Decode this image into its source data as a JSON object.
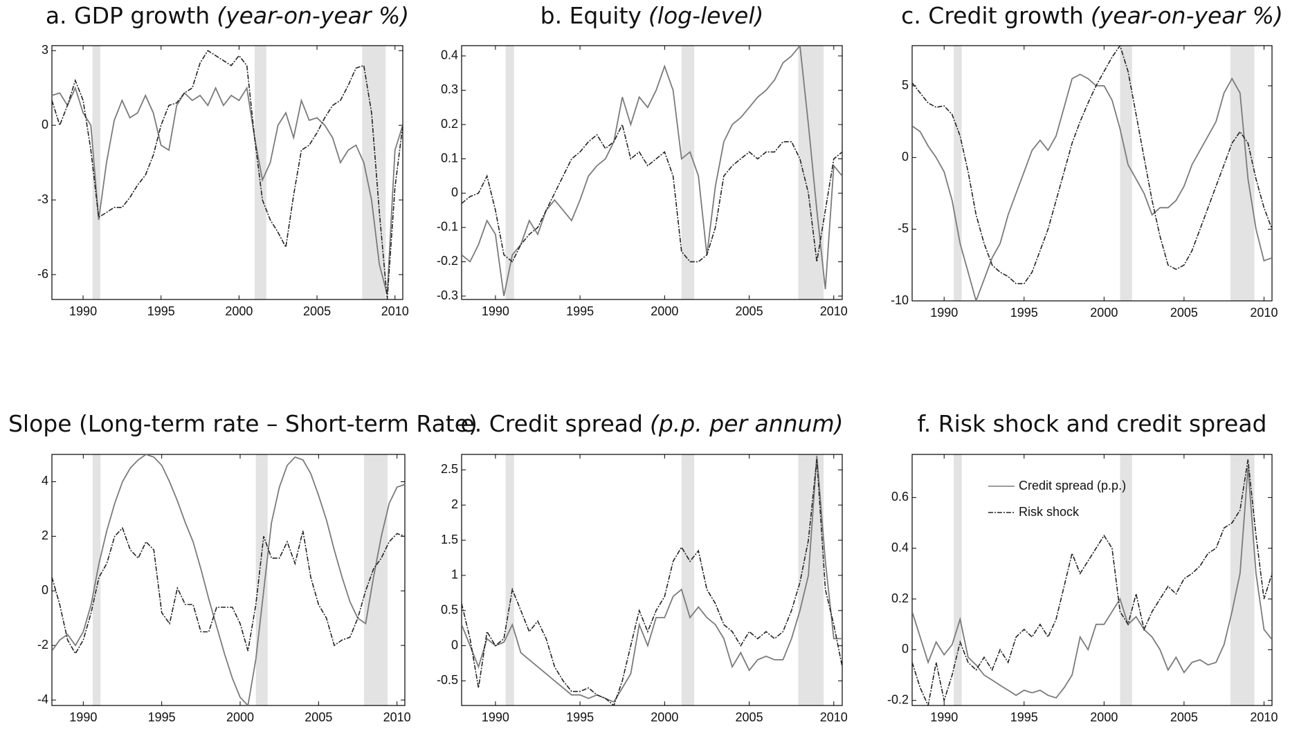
{
  "chart_data": [
    {
      "type": "line",
      "title": "a. GDP growth",
      "subtitle": "(year-on-year %)",
      "x": [
        1988,
        1988.5,
        1989,
        1989.5,
        1990,
        1990.5,
        1991,
        1991.5,
        1992,
        1992.5,
        1993,
        1993.5,
        1994,
        1994.5,
        1995,
        1995.5,
        1996,
        1996.5,
        1997,
        1997.5,
        1998,
        1998.5,
        1999,
        1999.5,
        2000,
        2000.5,
        2001,
        2001.5,
        2002,
        2002.5,
        2003,
        2003.5,
        2004,
        2004.5,
        2005,
        2005.5,
        2006,
        2006.5,
        2007,
        2007.5,
        2008,
        2008.5,
        2009,
        2009.5,
        2010,
        2010.5
      ],
      "xlim": [
        1988,
        2010.5
      ],
      "xticks": [
        1990,
        1995,
        2000,
        2005,
        2010
      ],
      "ylim": [
        -7,
        3.2
      ],
      "yticks": [
        3,
        0,
        -3,
        -6
      ],
      "shaded_periods": [
        [
          1990.6,
          1991.1
        ],
        [
          2001,
          2001.75
        ],
        [
          2007.9,
          2009.4
        ]
      ],
      "shade_color": "#e3e3e3",
      "series": [
        {
          "color": "#7a7a7a",
          "style": "solid",
          "values": [
            1.2,
            1.3,
            0.8,
            1.5,
            0.5,
            0,
            -3.8,
            -1.5,
            0.2,
            1.0,
            0.3,
            0.5,
            1.2,
            0.5,
            -0.8,
            -1.0,
            0.8,
            1.3,
            1.0,
            1.2,
            0.8,
            1.5,
            0.8,
            1.2,
            1.0,
            1.5,
            -0.5,
            -2.2,
            -1.5,
            0,
            0.5,
            -0.5,
            1.0,
            0.2,
            0.3,
            0,
            -0.5,
            -1.5,
            -1.0,
            -0.8,
            -1.5,
            -3,
            -5.6,
            -6.8,
            -1,
            0
          ]
        },
        {
          "color": "#222222",
          "style": "dashed",
          "values": [
            1.0,
            0,
            0.8,
            1.8,
            1.0,
            -1,
            -3.7,
            -3.5,
            -3.3,
            -3.3,
            -2.9,
            -2.4,
            -2.0,
            -1.2,
            0,
            0.8,
            0.9,
            1.3,
            1.5,
            2.5,
            3.0,
            2.8,
            2.6,
            2.4,
            2.8,
            2.4,
            -0.5,
            -3.0,
            -3.8,
            -4.3,
            -4.9,
            -2.8,
            -1.0,
            -0.8,
            -0.3,
            0.3,
            0.8,
            1.0,
            1.6,
            2.3,
            2.4,
            0.5,
            -3.5,
            -7.0,
            -2.5,
            0
          ]
        }
      ]
    },
    {
      "type": "line",
      "title": "b. Equity",
      "subtitle": "(log-level)",
      "x": [
        1988,
        1988.5,
        1989,
        1989.5,
        1990,
        1990.5,
        1991,
        1991.5,
        1992,
        1992.5,
        1993,
        1993.5,
        1994,
        1994.5,
        1995,
        1995.5,
        1996,
        1996.5,
        1997,
        1997.5,
        1998,
        1998.5,
        1999,
        1999.5,
        2000,
        2000.5,
        2001,
        2001.5,
        2002,
        2002.5,
        2003,
        2003.5,
        2004,
        2004.5,
        2005,
        2005.5,
        2006,
        2006.5,
        2007,
        2007.5,
        2008,
        2008.5,
        2009,
        2009.5,
        2010,
        2010.5
      ],
      "xlim": [
        1988,
        2010.5
      ],
      "xticks": [
        1990,
        1995,
        2000,
        2005,
        2010
      ],
      "ylim": [
        -0.31,
        0.43
      ],
      "yticks": [
        -0.3,
        -0.2,
        -0.1,
        0,
        0.1,
        0.2,
        0.3,
        0.4
      ],
      "shaded_periods": [
        [
          1990.6,
          1991.1
        ],
        [
          2001,
          2001.75
        ],
        [
          2007.9,
          2009.4
        ]
      ],
      "shade_color": "#e3e3e3",
      "series": [
        {
          "color": "#7a7a7a",
          "style": "solid",
          "values": [
            -0.18,
            -0.2,
            -0.15,
            -0.08,
            -0.12,
            -0.3,
            -0.18,
            -0.15,
            -0.08,
            -0.12,
            -0.05,
            -0.02,
            -0.05,
            -0.08,
            -0.02,
            0.05,
            0.08,
            0.1,
            0.15,
            0.28,
            0.2,
            0.28,
            0.25,
            0.3,
            0.37,
            0.3,
            0.1,
            0.12,
            0.05,
            -0.18,
            0.02,
            0.15,
            0.2,
            0.22,
            0.25,
            0.28,
            0.3,
            0.33,
            0.38,
            0.4,
            0.43,
            0.2,
            -0.05,
            -0.28,
            0.08,
            0.05
          ]
        },
        {
          "color": "#222222",
          "style": "dashed",
          "values": [
            -0.03,
            -0.01,
            0.0,
            0.05,
            -0.05,
            -0.18,
            -0.2,
            -0.15,
            -0.12,
            -0.1,
            -0.05,
            0.0,
            0.05,
            0.1,
            0.12,
            0.15,
            0.17,
            0.13,
            0.15,
            0.2,
            0.1,
            0.12,
            0.08,
            0.1,
            0.12,
            0.05,
            -0.17,
            -0.2,
            -0.2,
            -0.18,
            -0.1,
            0.05,
            0.08,
            0.1,
            0.12,
            0.1,
            0.12,
            0.12,
            0.15,
            0.15,
            0.1,
            0.0,
            -0.2,
            -0.05,
            0.1,
            0.12
          ]
        }
      ]
    },
    {
      "type": "line",
      "title": "c. Credit growth",
      "subtitle": "(year-on-year %)",
      "x": [
        1988,
        1988.5,
        1989,
        1989.5,
        1990,
        1990.5,
        1991,
        1991.5,
        1992,
        1992.5,
        1993,
        1993.5,
        1994,
        1994.5,
        1995,
        1995.5,
        1996,
        1996.5,
        1997,
        1997.5,
        1998,
        1998.5,
        1999,
        1999.5,
        2000,
        2000.5,
        2001,
        2001.5,
        2002,
        2002.5,
        2003,
        2003.5,
        2004,
        2004.5,
        2005,
        2005.5,
        2006,
        2006.5,
        2007,
        2007.5,
        2008,
        2008.5,
        2009,
        2009.5,
        2010,
        2010.5
      ],
      "xlim": [
        1988,
        2010.5
      ],
      "xticks": [
        1990,
        1995,
        2000,
        2005,
        2010
      ],
      "ylim": [
        -10,
        7.8
      ],
      "yticks": [
        5,
        0,
        -5,
        -10
      ],
      "shaded_periods": [
        [
          1990.6,
          1991.1
        ],
        [
          2001,
          2001.75
        ],
        [
          2007.9,
          2009.4
        ]
      ],
      "shade_color": "#e3e3e3",
      "series": [
        {
          "color": "#7a7a7a",
          "style": "solid",
          "values": [
            2.2,
            1.8,
            0.8,
            0,
            -1,
            -3,
            -6,
            -8,
            -10,
            -8.5,
            -7,
            -6,
            -4,
            -2.5,
            -1,
            0.5,
            1.2,
            0.5,
            1.5,
            3.5,
            5.5,
            5.8,
            5.5,
            5,
            5,
            4,
            2,
            -0.5,
            -1.5,
            -2.5,
            -4,
            -3.5,
            -3.5,
            -3,
            -2,
            -0.5,
            0.5,
            1.5,
            2.5,
            4.5,
            5.5,
            4.5,
            -1.5,
            -5,
            -7.2,
            -7
          ]
        },
        {
          "color": "#222222",
          "style": "dashed",
          "values": [
            5.2,
            4.5,
            3.8,
            3.5,
            3.6,
            3.0,
            1.5,
            -1,
            -4,
            -6,
            -7.5,
            -8,
            -8.3,
            -8.8,
            -8.8,
            -8,
            -6.5,
            -5,
            -3,
            -1,
            1,
            2.5,
            3.8,
            5,
            6,
            7,
            7.8,
            6,
            3,
            0,
            -3,
            -5.5,
            -7.5,
            -7.8,
            -7.5,
            -6.5,
            -5,
            -3.5,
            -2,
            -0.5,
            1,
            1.8,
            1,
            -1.5,
            -3.5,
            -5
          ]
        }
      ]
    },
    {
      "type": "line",
      "title": "d. Slope (Long-term rate – Short-term Rate)",
      "x": [
        1988,
        1988.5,
        1989,
        1989.5,
        1990,
        1990.5,
        1991,
        1991.5,
        1992,
        1992.5,
        1993,
        1993.5,
        1994,
        1994.5,
        1995,
        1995.5,
        1996,
        1996.5,
        1997,
        1997.5,
        1998,
        1998.5,
        1999,
        1999.5,
        2000,
        2000.5,
        2001,
        2001.5,
        2002,
        2002.5,
        2003,
        2003.5,
        2004,
        2004.5,
        2005,
        2005.5,
        2006,
        2006.5,
        2007,
        2007.5,
        2008,
        2008.5,
        2009,
        2009.5,
        2010,
        2010.5
      ],
      "xlim": [
        1988,
        2010.5
      ],
      "xticks": [
        1990,
        1995,
        2000,
        2005,
        2010
      ],
      "ylim": [
        -4.2,
        5
      ],
      "yticks": [
        4,
        2,
        0,
        -2,
        -4
      ],
      "shaded_periods": [
        [
          1990.6,
          1991.1
        ],
        [
          2001,
          2001.75
        ],
        [
          2007.9,
          2009.4
        ]
      ],
      "shade_color": "#e3e3e3",
      "series": [
        {
          "color": "#7a7a7a",
          "style": "solid",
          "values": [
            -2.2,
            -1.8,
            -1.6,
            -2.0,
            -1.5,
            -0.5,
            1,
            2.2,
            3.2,
            4.0,
            4.5,
            4.8,
            5.0,
            4.9,
            4.6,
            4.0,
            3.3,
            2.5,
            1.8,
            0.8,
            -0.3,
            -1.3,
            -2.3,
            -3.2,
            -3.9,
            -4.2,
            -2.5,
            0,
            2.5,
            3.8,
            4.6,
            4.9,
            4.8,
            4.3,
            3.5,
            2.6,
            1.5,
            0.5,
            -0.4,
            -1.0,
            -1.2,
            0.5,
            2.0,
            3.2,
            3.8,
            3.9
          ]
        },
        {
          "color": "#222222",
          "style": "dashed",
          "values": [
            0.5,
            -0.5,
            -1.8,
            -2.3,
            -1.8,
            -0.8,
            0.5,
            1.0,
            2.0,
            2.3,
            1.5,
            1.2,
            1.8,
            1.5,
            -0.8,
            -1.2,
            0.1,
            -0.5,
            -0.5,
            -1.5,
            -1.5,
            -0.6,
            -0.6,
            -0.6,
            -1.2,
            -2.2,
            -0.5,
            2.0,
            1.2,
            1.2,
            1.8,
            1.0,
            2.2,
            0.5,
            -0.5,
            -1.0,
            -2.0,
            -1.8,
            -1.7,
            -1.0,
            0.0,
            0.8,
            1.2,
            1.8,
            2.1,
            2.0
          ]
        }
      ]
    },
    {
      "type": "line",
      "title": "e. Credit spread",
      "subtitle": "(p.p. per annum)",
      "x": [
        1988,
        1988.5,
        1989,
        1989.5,
        1990,
        1990.5,
        1991,
        1991.5,
        1992,
        1992.5,
        1993,
        1993.5,
        1994,
        1994.5,
        1995,
        1995.5,
        1996,
        1996.5,
        1997,
        1997.5,
        1998,
        1998.5,
        1999,
        1999.5,
        2000,
        2000.5,
        2001,
        2001.5,
        2002,
        2002.5,
        2003,
        2003.5,
        2004,
        2004.5,
        2005,
        2005.5,
        2006,
        2006.5,
        2007,
        2007.5,
        2008,
        2008.5,
        2009,
        2009.5,
        2010,
        2010.5
      ],
      "xlim": [
        1988,
        2010.5
      ],
      "xticks": [
        1990,
        1995,
        2000,
        2005,
        2010
      ],
      "ylim": [
        -0.85,
        2.72
      ],
      "yticks": [
        -0.5,
        0,
        0.5,
        1,
        1.5,
        2,
        2.5
      ],
      "shaded_periods": [
        [
          1990.6,
          1991.1
        ],
        [
          2001,
          2001.75
        ],
        [
          2007.9,
          2009.4
        ]
      ],
      "shade_color": "#e3e3e3",
      "series": [
        {
          "color": "#7a7a7a",
          "style": "solid",
          "values": [
            0.3,
            0,
            -0.3,
            0.1,
            0.0,
            0.05,
            0.3,
            -0.1,
            -0.2,
            -0.3,
            -0.4,
            -0.5,
            -0.6,
            -0.7,
            -0.7,
            -0.75,
            -0.7,
            -0.75,
            -0.8,
            -0.6,
            -0.4,
            0.3,
            0,
            0.4,
            0.4,
            0.7,
            0.8,
            0.4,
            0.55,
            0.4,
            0.3,
            0.1,
            -0.3,
            -0.1,
            -0.35,
            -0.2,
            -0.15,
            -0.2,
            -0.2,
            0.1,
            0.5,
            1.0,
            2.7,
            1.2,
            0.1,
            0.1
          ]
        },
        {
          "color": "#222222",
          "style": "dashed",
          "values": [
            0.6,
            0.1,
            -0.6,
            0.2,
            0.0,
            0.1,
            0.8,
            0.5,
            0.2,
            0.35,
            0.1,
            -0.3,
            -0.5,
            -0.65,
            -0.65,
            -0.6,
            -0.7,
            -0.75,
            -0.85,
            -0.5,
            0,
            0.5,
            0.2,
            0.5,
            0.7,
            1.2,
            1.4,
            1.2,
            1.35,
            0.8,
            0.6,
            0.3,
            0.2,
            0,
            0.2,
            0.1,
            0.2,
            0.1,
            0.2,
            0.5,
            0.9,
            1.5,
            2.65,
            0.8,
            0.3,
            -0.3
          ]
        }
      ]
    },
    {
      "type": "line",
      "title": "f. Risk shock and credit spread",
      "x": [
        1988,
        1988.5,
        1989,
        1989.5,
        1990,
        1990.5,
        1991,
        1991.5,
        1992,
        1992.5,
        1993,
        1993.5,
        1994,
        1994.5,
        1995,
        1995.5,
        1996,
        1996.5,
        1997,
        1997.5,
        1998,
        1998.5,
        1999,
        1999.5,
        2000,
        2000.5,
        2001,
        2001.5,
        2002,
        2002.5,
        2003,
        2003.5,
        2004,
        2004.5,
        2005,
        2005.5,
        2006,
        2006.5,
        2007,
        2007.5,
        2008,
        2008.5,
        2009,
        2009.5,
        2010,
        2010.5
      ],
      "xlim": [
        1988,
        2010.5
      ],
      "xticks": [
        1990,
        1995,
        2000,
        2005,
        2010
      ],
      "ylim": [
        -0.22,
        0.77
      ],
      "yticks": [
        -0.2,
        0,
        0.2,
        0.4,
        0.6
      ],
      "shaded_periods": [
        [
          1990.6,
          1991.1
        ],
        [
          2001,
          2001.75
        ],
        [
          2007.9,
          2009.4
        ]
      ],
      "shade_color": "#e3e3e3",
      "legend": "upper left",
      "series": [
        {
          "name": "Credit spread (p.p.)",
          "color": "#7a7a7a",
          "style": "solid",
          "values": [
            0.15,
            0.05,
            -0.05,
            0.03,
            -0.02,
            0.02,
            0.12,
            -0.03,
            -0.06,
            -0.1,
            -0.12,
            -0.14,
            -0.16,
            -0.18,
            -0.16,
            -0.17,
            -0.16,
            -0.18,
            -0.19,
            -0.15,
            -0.1,
            0.05,
            0,
            0.1,
            0.1,
            0.15,
            0.2,
            0.1,
            0.13,
            0.08,
            0.05,
            0.0,
            -0.08,
            -0.03,
            -0.09,
            -0.05,
            -0.04,
            -0.06,
            -0.05,
            0.02,
            0.15,
            0.3,
            0.72,
            0.3,
            0.08,
            0.04
          ]
        },
        {
          "name": "Risk shock",
          "color": "#222222",
          "style": "dashed",
          "values": [
            -0.05,
            -0.15,
            -0.22,
            -0.05,
            -0.2,
            -0.1,
            0.03,
            -0.05,
            -0.08,
            -0.03,
            -0.08,
            0.0,
            -0.05,
            0.05,
            0.08,
            0.05,
            0.1,
            0.05,
            0.12,
            0.25,
            0.38,
            0.3,
            0.35,
            0.4,
            0.45,
            0.4,
            0.15,
            0.1,
            0.22,
            0.08,
            0.15,
            0.2,
            0.25,
            0.22,
            0.28,
            0.3,
            0.33,
            0.38,
            0.4,
            0.48,
            0.5,
            0.55,
            0.75,
            0.45,
            0.2,
            0.3
          ]
        }
      ]
    }
  ]
}
